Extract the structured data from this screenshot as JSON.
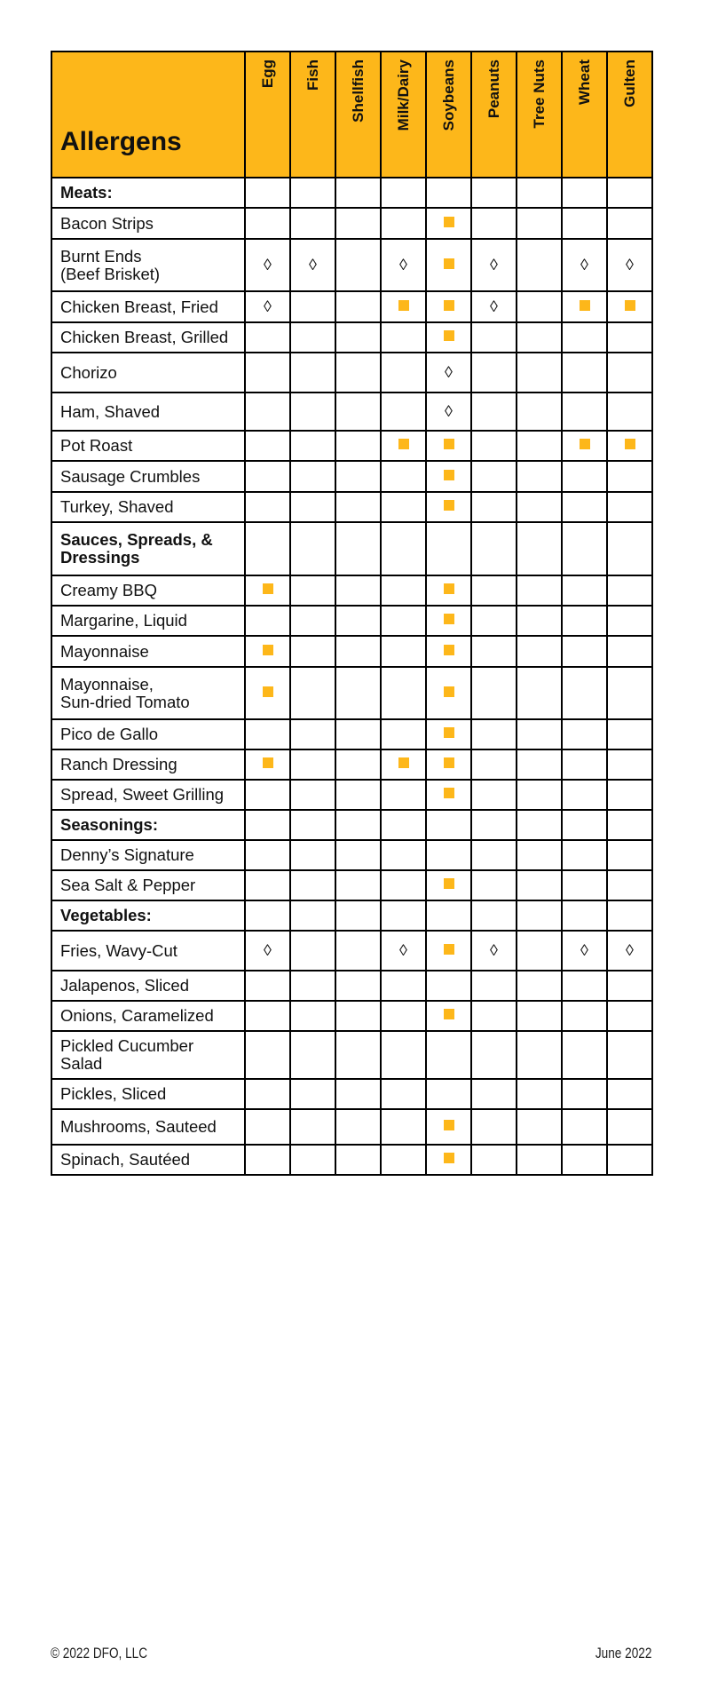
{
  "table": {
    "title": "Allergens",
    "columns": [
      "Egg",
      "Fish",
      "Shellfish",
      "Milk/Dairy",
      "Soybeans",
      "Peanuts",
      "Tree Nuts",
      "Wheat",
      "Gulten"
    ],
    "legend_marks": {
      "S": "filled-square",
      "D": "diamond"
    },
    "diamond_glyph": "◊",
    "accent_color": "#FDB71A",
    "rows": [
      {
        "name": "Meats:",
        "category": true,
        "marks": [
          "",
          "",
          "",
          "",
          "",
          "",
          "",
          "",
          ""
        ],
        "h": 34
      },
      {
        "name": "Bacon Strips",
        "marks": [
          "",
          "",
          "",
          "",
          "S",
          "",
          "",
          "",
          ""
        ],
        "h": 35
      },
      {
        "name": "Burnt Ends\n(Beef Brisket)",
        "marks": [
          "D",
          "D",
          "",
          "D",
          "S",
          "D",
          "",
          "D",
          "D"
        ],
        "h": 59
      },
      {
        "name": "Chicken Breast, Fried",
        "marks": [
          "D",
          "",
          "",
          "S",
          "S",
          "D",
          "",
          "S",
          "S"
        ],
        "h": 35
      },
      {
        "name": "Chicken Breast, Grilled",
        "marks": [
          "",
          "",
          "",
          "",
          "S",
          "",
          "",
          "",
          ""
        ],
        "h": 34
      },
      {
        "name": "Chorizo",
        "marks": [
          "",
          "",
          "",
          "",
          "D",
          "",
          "",
          "",
          ""
        ],
        "h": 45
      },
      {
        "name": "Ham, Shaved",
        "marks": [
          "",
          "",
          "",
          "",
          "D",
          "",
          "",
          "",
          ""
        ],
        "h": 43
      },
      {
        "name": "Pot Roast",
        "marks": [
          "",
          "",
          "",
          "S",
          "S",
          "",
          "",
          "S",
          "S"
        ],
        "h": 34
      },
      {
        "name": "Sausage Crumbles",
        "marks": [
          "",
          "",
          "",
          "",
          "S",
          "",
          "",
          "",
          ""
        ],
        "h": 35
      },
      {
        "name": "Turkey, Shaved",
        "marks": [
          "",
          "",
          "",
          "",
          "S",
          "",
          "",
          "",
          ""
        ],
        "h": 34
      },
      {
        "name": "Sauces, Spreads, &\nDressings",
        "category": true,
        "marks": [
          "",
          "",
          "",
          "",
          "",
          "",
          "",
          "",
          ""
        ],
        "h": 60
      },
      {
        "name": "Creamy BBQ",
        "marks": [
          "S",
          "",
          "",
          "",
          "S",
          "",
          "",
          "",
          ""
        ],
        "h": 34
      },
      {
        "name": "Margarine, Liquid",
        "marks": [
          "",
          "",
          "",
          "",
          "S",
          "",
          "",
          "",
          ""
        ],
        "h": 34
      },
      {
        "name": "Mayonnaise",
        "marks": [
          "S",
          "",
          "",
          "",
          "S",
          "",
          "",
          "",
          ""
        ],
        "h": 35
      },
      {
        "name": "Mayonnaise,\nSun-dried Tomato",
        "marks": [
          "S",
          "",
          "",
          "",
          "S",
          "",
          "",
          "",
          ""
        ],
        "h": 59
      },
      {
        "name": "Pico de Gallo",
        "marks": [
          "",
          "",
          "",
          "",
          "S",
          "",
          "",
          "",
          ""
        ],
        "h": 34
      },
      {
        "name": "Ranch Dressing",
        "marks": [
          "S",
          "",
          "",
          "S",
          "S",
          "",
          "",
          "",
          ""
        ],
        "h": 34
      },
      {
        "name": "Spread, Sweet Grilling",
        "marks": [
          "",
          "",
          "",
          "",
          "S",
          "",
          "",
          "",
          ""
        ],
        "h": 34
      },
      {
        "name": "Seasonings:",
        "category": true,
        "marks": [
          "",
          "",
          "",
          "",
          "",
          "",
          "",
          "",
          ""
        ],
        "h": 34
      },
      {
        "name": "Denny’s Signature",
        "marks": [
          "",
          "",
          "",
          "",
          "",
          "",
          "",
          "",
          ""
        ],
        "h": 34
      },
      {
        "name": "Sea Salt & Pepper",
        "marks": [
          "",
          "",
          "",
          "",
          "S",
          "",
          "",
          "",
          ""
        ],
        "h": 34
      },
      {
        "name": "Vegetables:",
        "category": true,
        "marks": [
          "",
          "",
          "",
          "",
          "",
          "",
          "",
          "",
          ""
        ],
        "h": 34
      },
      {
        "name": "Fries, Wavy-Cut",
        "marks": [
          "D",
          "",
          "",
          "D",
          "S",
          "D",
          "",
          "D",
          "D"
        ],
        "h": 45
      },
      {
        "name": "Jalapenos, Sliced",
        "marks": [
          "",
          "",
          "",
          "",
          "",
          "",
          "",
          "",
          ""
        ],
        "h": 34
      },
      {
        "name": "Onions, Caramelized",
        "marks": [
          "",
          "",
          "",
          "",
          "S",
          "",
          "",
          "",
          ""
        ],
        "h": 34
      },
      {
        "name": "Pickled Cucumber\nSalad",
        "marks": [
          "",
          "",
          "",
          "",
          "",
          "",
          "",
          "",
          ""
        ],
        "h": 54
      },
      {
        "name": "Pickles, Sliced",
        "marks": [
          "",
          "",
          "",
          "",
          "",
          "",
          "",
          "",
          ""
        ],
        "h": 34
      },
      {
        "name": "Mushrooms, Sauteed",
        "marks": [
          "",
          "",
          "",
          "",
          "S",
          "",
          "",
          "",
          ""
        ],
        "h": 40
      },
      {
        "name": "Spinach, Sautéed",
        "marks": [
          "",
          "",
          "",
          "",
          "S",
          "",
          "",
          "",
          ""
        ],
        "h": 34
      }
    ]
  },
  "footer": {
    "copyright": "© 2022 DFO, LLC",
    "date": "June 2022"
  }
}
